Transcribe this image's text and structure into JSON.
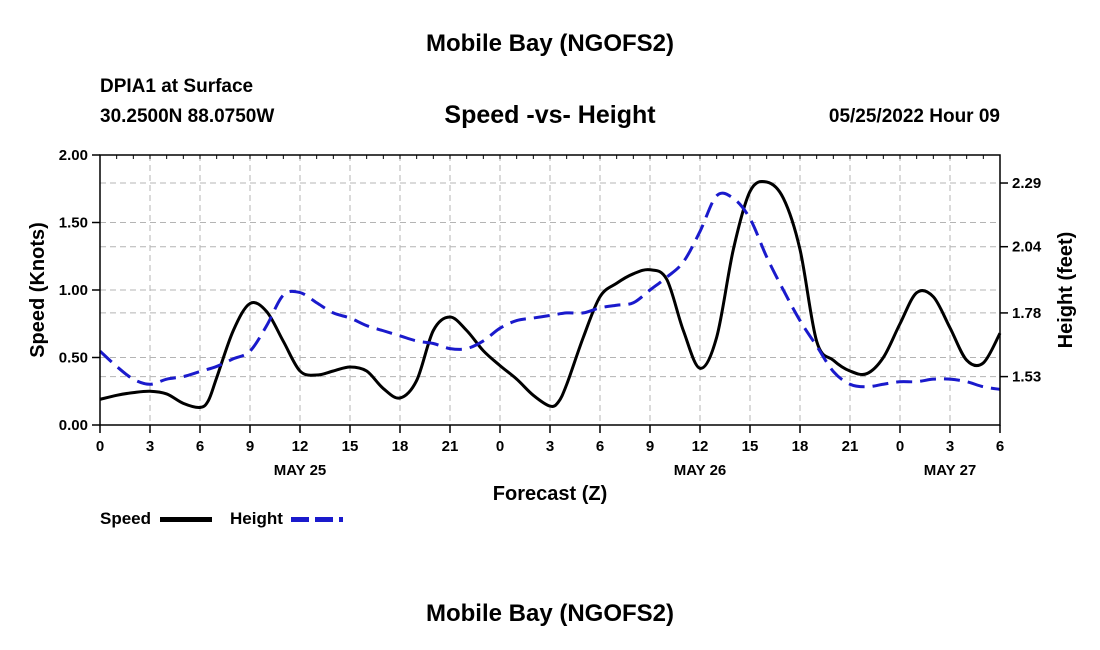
{
  "page": {
    "title": "Mobile Bay (NGOFS2)",
    "station": "DPIA1 at Surface",
    "coords": "30.2500N  88.0750W",
    "chart_title": "Speed -vs- Height",
    "datetime": "05/25/2022 Hour 09",
    "footer_title": "Mobile Bay (NGOFS2)"
  },
  "legend": {
    "speed_label": "Speed",
    "height_label": "Height"
  },
  "colors": {
    "speed": "#000000",
    "height": "#1a1acc",
    "grid": "#b4b4b4"
  },
  "chart_data": {
    "type": "line",
    "title": "Speed -vs- Height",
    "xlabel": "Forecast (Z)",
    "ylabel": "Speed (Knots)",
    "y2label": "Height (feet)",
    "xlim": [
      0,
      54
    ],
    "ylim": [
      0,
      2.0
    ],
    "y2lim": [
      1.34,
      2.4
    ],
    "grid": true,
    "x_ticks": [
      0,
      3,
      6,
      9,
      12,
      15,
      18,
      21,
      24,
      27,
      30,
      33,
      36,
      39,
      42,
      45,
      48,
      51,
      54
    ],
    "x_tick_labels": [
      "0",
      "3",
      "6",
      "9",
      "12",
      "15",
      "18",
      "21",
      "0",
      "3",
      "6",
      "9",
      "12",
      "15",
      "18",
      "21",
      "0",
      "3",
      "6"
    ],
    "date_labels": [
      {
        "x": 12,
        "label": "MAY 25"
      },
      {
        "x": 36,
        "label": "MAY 26"
      },
      {
        "x": 51,
        "label": "MAY 27"
      }
    ],
    "y_ticks": [
      0.0,
      0.5,
      1.0,
      1.5,
      2.0
    ],
    "y_tick_labels": [
      "0.00",
      "0.50",
      "1.00",
      "1.50",
      "2.00"
    ],
    "y2_ticks": [
      1.53,
      1.78,
      2.04,
      2.29
    ],
    "y2_tick_labels": [
      "1.53",
      "1.78",
      "2.04",
      "2.29"
    ],
    "series": [
      {
        "name": "Speed",
        "axis": "left",
        "style": "solid",
        "x": [
          0,
          1,
          2,
          3,
          4,
          5,
          6,
          6.5,
          7,
          8,
          9,
          10,
          11,
          12,
          13,
          14,
          15,
          16,
          17,
          18,
          19,
          20,
          21,
          22,
          23,
          24,
          25,
          26,
          27,
          27.5,
          28,
          29,
          30,
          31,
          32,
          33,
          34,
          35,
          36,
          37,
          38,
          39,
          40,
          41,
          42,
          43,
          44,
          45,
          46,
          47,
          48,
          49,
          50,
          51,
          52,
          53,
          54
        ],
        "values": [
          0.19,
          0.22,
          0.24,
          0.25,
          0.23,
          0.16,
          0.13,
          0.18,
          0.35,
          0.7,
          0.9,
          0.84,
          0.62,
          0.4,
          0.37,
          0.4,
          0.43,
          0.4,
          0.27,
          0.2,
          0.33,
          0.7,
          0.8,
          0.7,
          0.55,
          0.44,
          0.34,
          0.22,
          0.14,
          0.17,
          0.3,
          0.65,
          0.95,
          1.05,
          1.12,
          1.15,
          1.08,
          0.7,
          0.42,
          0.65,
          1.3,
          1.73,
          1.8,
          1.68,
          1.3,
          0.62,
          0.48,
          0.4,
          0.38,
          0.5,
          0.75,
          0.98,
          0.95,
          0.72,
          0.48,
          0.46,
          0.68
        ]
      },
      {
        "name": "Height",
        "axis": "right",
        "style": "dashed",
        "x": [
          0,
          1,
          2,
          3,
          4,
          5,
          6,
          7,
          8,
          9,
          10,
          11,
          12,
          13,
          14,
          15,
          16,
          17,
          18,
          19,
          20,
          21,
          22,
          23,
          24,
          25,
          26,
          27,
          28,
          29,
          30,
          31,
          32,
          33,
          34,
          35,
          36,
          37,
          38,
          39,
          40,
          41,
          42,
          43,
          44,
          45,
          46,
          47,
          48,
          49,
          50,
          51,
          52,
          53,
          54
        ],
        "values": [
          1.63,
          1.57,
          1.52,
          1.5,
          1.52,
          1.53,
          1.55,
          1.57,
          1.6,
          1.63,
          1.73,
          1.85,
          1.86,
          1.82,
          1.78,
          1.76,
          1.73,
          1.71,
          1.69,
          1.67,
          1.66,
          1.64,
          1.64,
          1.67,
          1.72,
          1.75,
          1.76,
          1.77,
          1.78,
          1.78,
          1.8,
          1.81,
          1.82,
          1.87,
          1.92,
          1.98,
          2.1,
          2.24,
          2.23,
          2.15,
          2.0,
          1.87,
          1.75,
          1.65,
          1.55,
          1.5,
          1.49,
          1.5,
          1.51,
          1.51,
          1.52,
          1.52,
          1.51,
          1.49,
          1.48
        ]
      }
    ]
  }
}
